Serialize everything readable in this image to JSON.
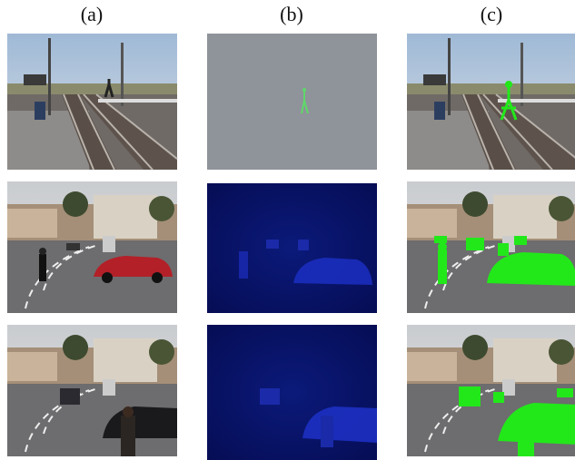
{
  "figure": {
    "column_labels": [
      "(a)",
      "(b)",
      "(c)"
    ]
  }
}
